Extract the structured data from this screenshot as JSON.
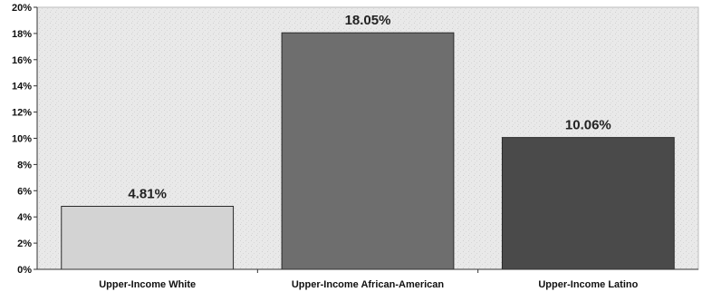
{
  "chart_data": {
    "type": "bar",
    "title": "",
    "xlabel": "",
    "ylabel": "",
    "categories": [
      "Upper-Income White",
      "Upper-Income African-American",
      "Upper-Income Latino"
    ],
    "values": [
      4.81,
      18.05,
      10.06
    ],
    "data_labels": [
      "4.81%",
      "18.05%",
      "10.06%"
    ],
    "ylim": [
      0,
      20
    ],
    "yticks": [
      0,
      2,
      4,
      6,
      8,
      10,
      12,
      14,
      16,
      18,
      20
    ],
    "ytick_labels": [
      "0%",
      "2%",
      "4%",
      "6%",
      "8%",
      "10%",
      "12%",
      "14%",
      "16%",
      "18%",
      "20%"
    ],
    "bar_colors": [
      "#d3d3d3",
      "#6e6e6e",
      "#4a4a4a"
    ],
    "plot_background": "#e8e8e8",
    "grid": false,
    "legend": "none"
  }
}
